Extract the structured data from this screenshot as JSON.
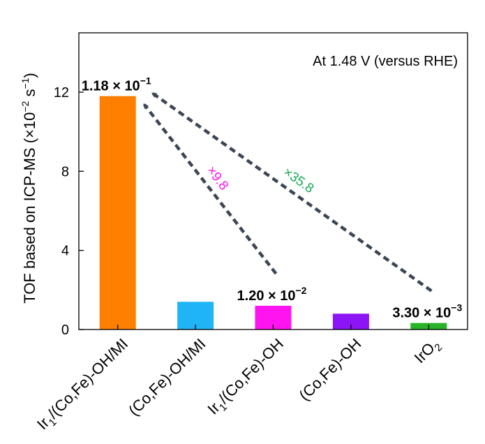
{
  "chart_data": {
    "type": "bar",
    "categories": [
      {
        "base": "Ir",
        "sub": "1",
        "rest": "/(Co,Fe)-OH/MI"
      },
      {
        "base": "(Co,Fe)-OH/MI",
        "sub": "",
        "rest": ""
      },
      {
        "base": "Ir",
        "sub": "1",
        "rest": "/(Co,Fe)-OH"
      },
      {
        "base": "(Co,Fe)-OH",
        "sub": "",
        "rest": ""
      },
      {
        "base": "IrO",
        "sub": "2",
        "rest": ""
      }
    ],
    "values": [
      11.8,
      1.4,
      1.2,
      0.8,
      0.33
    ],
    "colors": [
      "#ff7f00",
      "#1eb4f5",
      "#ff14f0",
      "#8c14f5",
      "#28b428"
    ],
    "ylabel": {
      "main": "TOF based on ICP-MS (×10",
      "exp1": "−2",
      "mid": " s",
      "exp2": "−1",
      "end": ")"
    },
    "ylim": [
      0,
      15
    ],
    "yticks": [
      0,
      4,
      8,
      12
    ],
    "annotation": "At 1.48 V (versus RHE)",
    "value_labels": [
      {
        "bar": 0,
        "mantissa": "1.18 × 10",
        "exp": "−1"
      },
      {
        "bar": 2,
        "mantissa": "1.20 × 10",
        "exp": "−2"
      },
      {
        "bar": 4,
        "mantissa": "3.30 × 10",
        "exp": "−3"
      }
    ],
    "ratios": [
      {
        "text": "×9.8",
        "color": "#ff14f0",
        "from_bar": 2,
        "to_bar": 0
      },
      {
        "text": "×35.8",
        "color": "#14aa50",
        "from_bar": 4,
        "to_bar": 0
      }
    ],
    "arrow_color": "#3c4655"
  }
}
